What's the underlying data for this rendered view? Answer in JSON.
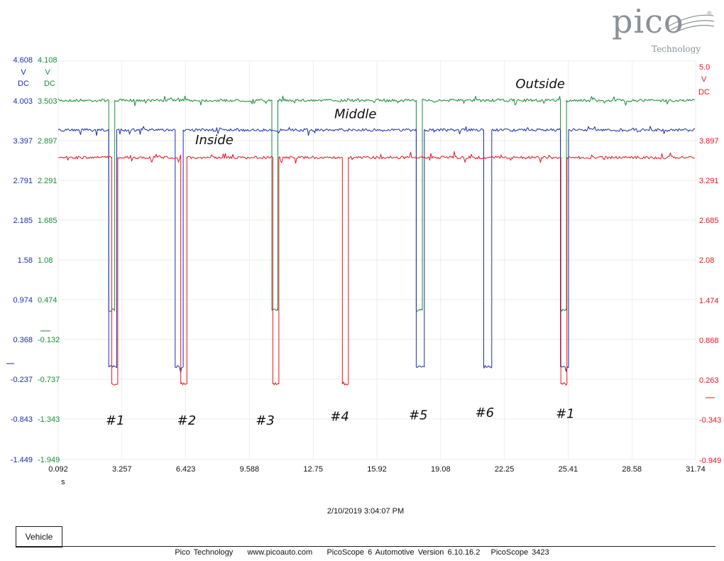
{
  "logo": {
    "name": "pico",
    "registered": "®",
    "tagline": "Technology"
  },
  "colors": {
    "green": "#1a8a3a",
    "blue": "#1c2db3",
    "red": "#e8161c",
    "grid": "#dddddd"
  },
  "axis_units": {
    "blue": [
      "V",
      "DC"
    ],
    "green": [
      "V",
      "DC"
    ],
    "red": [
      "V",
      "DC"
    ],
    "time": "s"
  },
  "timestamp": "2/10/2019 3:04:07 PM",
  "vehicle_button": "Vehicle",
  "footer": {
    "company": "Pico Technology",
    "url": "www.picoauto.com",
    "version": "PicoScope 6 Automotive Version 6.10.16.2",
    "device": "PicoScope 3423"
  },
  "chart_data": {
    "type": "line",
    "title": "",
    "xlabel": "s",
    "xlim": [
      0.092,
      31.74
    ],
    "x_ticks": [
      "0.092",
      "3.257",
      "6.423",
      "9.588",
      "12.75",
      "15.92",
      "19.08",
      "22.25",
      "25.41",
      "28.58",
      "31.74"
    ],
    "y_axes": {
      "blue": {
        "range": [
          -1.449,
          4.608
        ],
        "ticks": [
          "4.608",
          "4.003",
          "3.397",
          "2.791",
          "2.185",
          "1.58",
          "0.974",
          "0.368",
          "-0.237",
          "-0.843",
          "-1.449"
        ]
      },
      "green": {
        "range": [
          -1.949,
          4.108
        ],
        "ticks": [
          "4.108",
          "3.503",
          "2.897",
          "2.291",
          "1.685",
          "1.08",
          "0.474",
          "-0.132",
          "-0.737",
          "-1.343",
          "-1.949"
        ]
      },
      "red": {
        "range": [
          -0.949,
          5.0
        ],
        "ticks": [
          "5.0",
          "3.897",
          "3.291",
          "2.685",
          "2.08",
          "1.474",
          "0.868",
          "0.263",
          "-0.343",
          "-0.949"
        ]
      }
    },
    "series": [
      {
        "name": "Outside",
        "axis": "green",
        "high": 3.51,
        "low": 0.32,
        "pulses": [
          [
            2.6,
            2.9
          ],
          [
            10.7,
            11.0
          ],
          [
            17.87,
            18.17
          ],
          [
            25.03,
            25.33
          ]
        ]
      },
      {
        "name": "Middle",
        "axis": "blue",
        "high": 3.56,
        "low": -0.04,
        "pulses": [
          [
            2.6,
            3.0
          ],
          [
            5.9,
            6.3
          ],
          [
            17.87,
            18.27
          ],
          [
            21.22,
            21.62
          ],
          [
            25.03,
            25.43
          ]
        ]
      },
      {
        "name": "Inside",
        "axis": "red",
        "high": 3.56,
        "low": 0.18,
        "pulses": [
          [
            2.75,
            3.05
          ],
          [
            6.18,
            6.48
          ],
          [
            10.75,
            11.05
          ],
          [
            14.2,
            14.5
          ],
          [
            25.05,
            25.35
          ]
        ]
      }
    ],
    "annotations": [
      {
        "text": "Outside",
        "x": 22.8,
        "axis": "green",
        "y": 3.7
      },
      {
        "text": "Middle",
        "x": 13.8,
        "axis": "blue",
        "y": 3.74
      },
      {
        "text": "Inside",
        "x": 6.9,
        "axis": "red",
        "y": 3.76
      },
      {
        "text": "#1",
        "x": 2.45,
        "axis": "blue",
        "y": -0.92
      },
      {
        "text": "#2",
        "x": 6.0,
        "axis": "blue",
        "y": -0.92
      },
      {
        "text": "#3",
        "x": 9.9,
        "axis": "blue",
        "y": -0.92
      },
      {
        "text": "#4",
        "x": 13.6,
        "axis": "blue",
        "y": -0.86
      },
      {
        "text": "#5",
        "x": 17.5,
        "axis": "blue",
        "y": -0.84
      },
      {
        "text": "#6",
        "x": 20.8,
        "axis": "blue",
        "y": -0.8
      },
      {
        "text": "#1",
        "x": 24.8,
        "axis": "blue",
        "y": -0.82
      }
    ]
  }
}
